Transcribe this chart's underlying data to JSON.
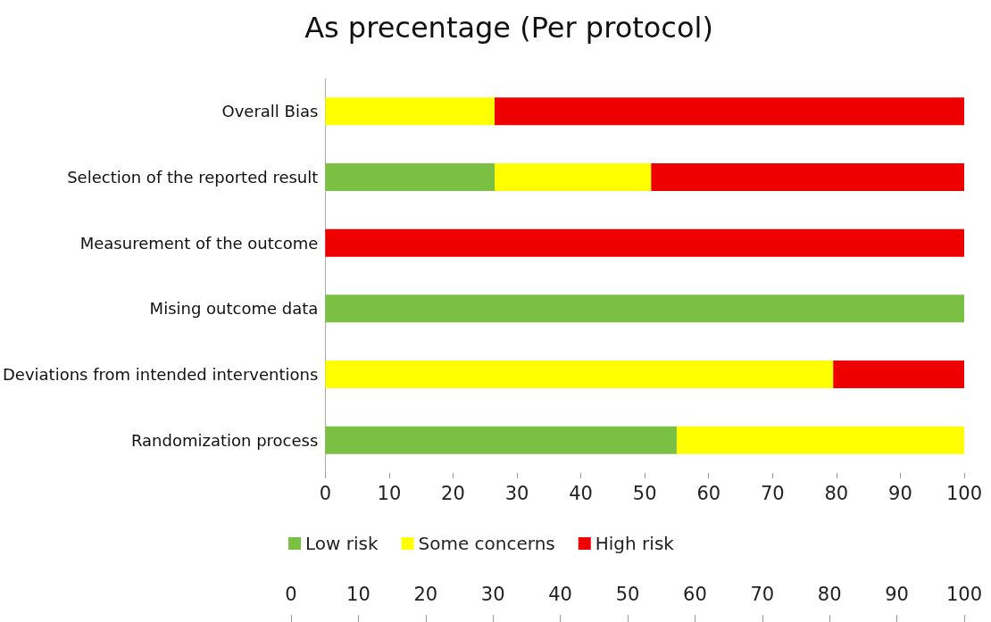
{
  "chart_data": {
    "type": "bar",
    "title": "As precentage (Per protocol)",
    "orientation": "horizontal",
    "stacked": true,
    "categories": [
      "Overall Bias",
      "Selection of the reported result",
      "Measurement of the outcome",
      "Mising outcome data",
      "Deviations from intended interventions",
      "Randomization process"
    ],
    "series": [
      {
        "name": "Low risk",
        "color": "#7ac143",
        "values": [
          0,
          26.5,
          0,
          100,
          0,
          55
        ]
      },
      {
        "name": "Some concerns",
        "color": "#ffff00",
        "values": [
          26.5,
          24.5,
          0,
          0,
          79.5,
          45
        ]
      },
      {
        "name": "High risk",
        "color": "#ee0000",
        "values": [
          73.5,
          49,
          100,
          0,
          20.5,
          0
        ]
      }
    ],
    "xlim": [
      0,
      100
    ],
    "xticks": [
      0,
      10,
      20,
      30,
      40,
      50,
      60,
      70,
      80,
      90,
      100
    ],
    "x2lim": [
      0,
      100
    ],
    "x2ticks": [
      0,
      10,
      20,
      30,
      40,
      50,
      60,
      70,
      80,
      90,
      100
    ],
    "grid": false,
    "legend": "bottom"
  }
}
